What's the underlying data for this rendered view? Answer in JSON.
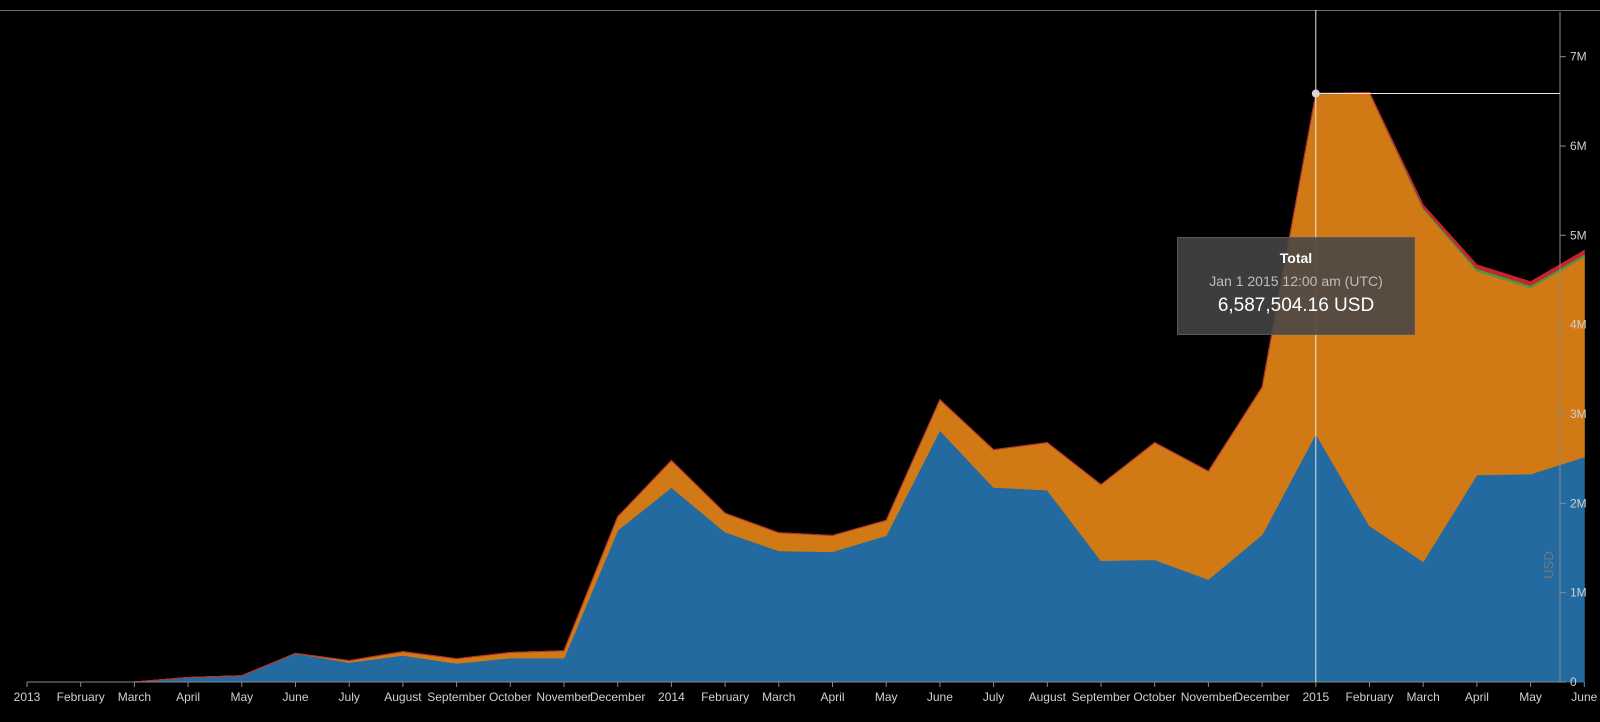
{
  "chart_data": {
    "type": "area",
    "stacked": true,
    "x": [
      "2013",
      "February",
      "March",
      "April",
      "May",
      "June",
      "July",
      "August",
      "September",
      "October",
      "November",
      "December",
      "2014",
      "February",
      "March",
      "April",
      "May",
      "June",
      "July",
      "August",
      "September",
      "October",
      "November",
      "December",
      "2015",
      "February",
      "March",
      "April",
      "May",
      "June"
    ],
    "series": [
      {
        "color": "#226a9f",
        "values": [
          0,
          0,
          0,
          0.05,
          0.07,
          0.32,
          0.22,
          0.3,
          0.21,
          0.27,
          0.27,
          1.7,
          2.18,
          1.68,
          1.47,
          1.46,
          1.64,
          2.82,
          2.18,
          2.15,
          1.36,
          1.37,
          1.15,
          1.65,
          2.78,
          1.75,
          1.35,
          2.32,
          2.33,
          2.52
        ]
      },
      {
        "color": "#d17a15",
        "values": [
          0,
          0,
          0,
          0,
          0,
          0,
          0.02,
          0.04,
          0.05,
          0.06,
          0.08,
          0.15,
          0.3,
          0.21,
          0.2,
          0.18,
          0.17,
          0.34,
          0.42,
          0.53,
          0.85,
          1.31,
          1.21,
          1.65,
          3.8,
          4.84,
          3.94,
          2.28,
          2.08,
          2.24
        ]
      },
      {
        "color": "#4b9a3b",
        "values": [
          0,
          0,
          0,
          0,
          0,
          0,
          0,
          0,
          0,
          0,
          0,
          0,
          0,
          0,
          0,
          0,
          0,
          0,
          0,
          0,
          0,
          0,
          0,
          0,
          0.005,
          0.005,
          0.02,
          0.03,
          0.03,
          0.03
        ]
      },
      {
        "color": "#c8242e",
        "values": [
          0,
          0,
          0,
          0,
          0,
          0,
          0,
          0,
          0,
          0,
          0,
          0,
          0,
          0,
          0,
          0,
          0,
          0,
          0,
          0,
          0,
          0,
          0,
          0,
          0.005,
          0.005,
          0.03,
          0.04,
          0.04,
          0.04
        ]
      }
    ],
    "y_ticks": [
      "0",
      "1M",
      "2M",
      "3M",
      "4M",
      "5M",
      "6M",
      "7M"
    ],
    "ylim": [
      0,
      7.5
    ],
    "y_unit": "M",
    "ylabel": "USD",
    "xlabel": "",
    "grid": false,
    "legend": "none",
    "hover_index": 24,
    "hover_total": 6.5875
  },
  "tooltip": {
    "title": "Total",
    "date": "Jan 1 2015 12:00 am (UTC)",
    "value": "6,587,504.16 USD"
  },
  "colors": {
    "background": "#000000",
    "axis": "#8a8a8a",
    "crosshair": "#e8e8e8"
  }
}
